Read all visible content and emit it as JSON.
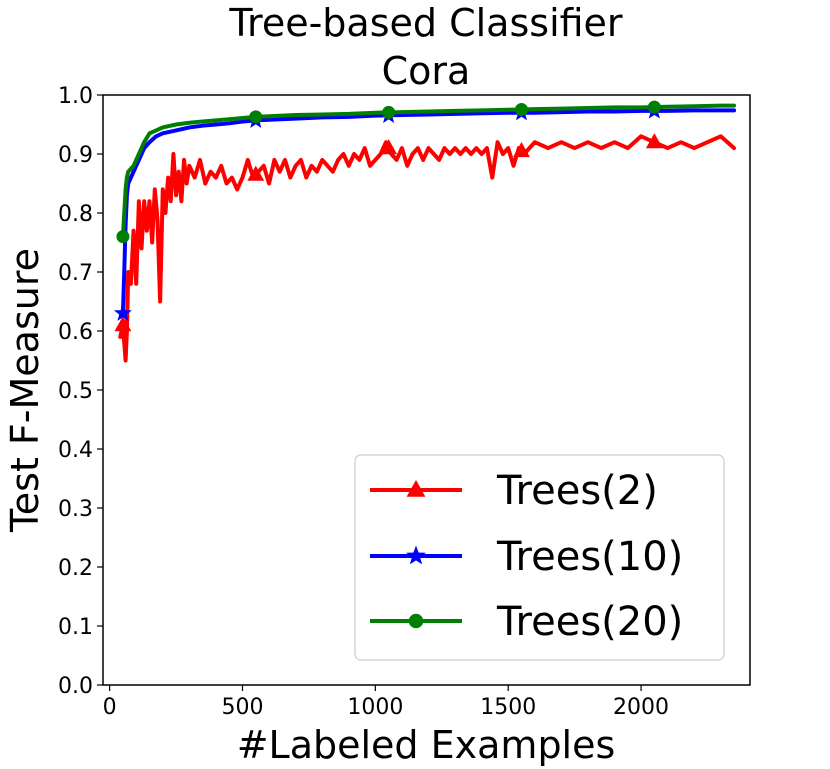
{
  "chart_data": {
    "type": "line",
    "title": "Tree-based Classifier",
    "subtitle": "Cora",
    "xlabel": "#Labeled Examples",
    "ylabel": "Test F-Measure",
    "xlim": [
      -25,
      2410
    ],
    "ylim": [
      0.0,
      1.0
    ],
    "xticks": [
      0,
      500,
      1000,
      1500,
      2000
    ],
    "yticks": [
      0.0,
      0.1,
      0.2,
      0.3,
      0.4,
      0.5,
      0.6,
      0.7,
      0.8,
      0.9,
      1.0
    ],
    "xtick_labels": [
      "0",
      "500",
      "1000",
      "1500",
      "2000"
    ],
    "ytick_labels": [
      "0.0",
      "0.1",
      "0.2",
      "0.3",
      "0.4",
      "0.5",
      "0.6",
      "0.7",
      "0.8",
      "0.9",
      "1.0"
    ],
    "grid": false,
    "legend_position": "lower-right",
    "series": [
      {
        "name": "Trees(2)",
        "color": "#ff0000",
        "marker": "triangle",
        "marker_x": [
          50,
          550,
          1050,
          1550,
          2050
        ],
        "x": [
          40,
          50,
          60,
          65,
          70,
          80,
          90,
          100,
          110,
          120,
          130,
          140,
          150,
          160,
          170,
          180,
          190,
          200,
          210,
          220,
          230,
          240,
          250,
          260,
          270,
          280,
          290,
          300,
          320,
          340,
          360,
          380,
          400,
          420,
          440,
          460,
          480,
          500,
          520,
          540,
          560,
          580,
          600,
          620,
          640,
          660,
          680,
          700,
          720,
          740,
          760,
          780,
          800,
          820,
          840,
          860,
          880,
          900,
          920,
          940,
          960,
          980,
          1000,
          1020,
          1040,
          1060,
          1080,
          1100,
          1120,
          1140,
          1160,
          1180,
          1200,
          1220,
          1240,
          1260,
          1280,
          1300,
          1320,
          1340,
          1360,
          1380,
          1400,
          1420,
          1440,
          1460,
          1480,
          1500,
          1520,
          1540,
          1560,
          1580,
          1600,
          1650,
          1700,
          1750,
          1800,
          1850,
          1900,
          1950,
          2000,
          2050,
          2100,
          2150,
          2200,
          2250,
          2300,
          2350
        ],
        "y": [
          0.59,
          0.61,
          0.55,
          0.6,
          0.7,
          0.68,
          0.77,
          0.68,
          0.82,
          0.74,
          0.82,
          0.77,
          0.82,
          0.75,
          0.84,
          0.79,
          0.65,
          0.84,
          0.8,
          0.86,
          0.82,
          0.9,
          0.83,
          0.87,
          0.82,
          0.89,
          0.85,
          0.88,
          0.86,
          0.89,
          0.85,
          0.87,
          0.86,
          0.88,
          0.85,
          0.86,
          0.84,
          0.86,
          0.89,
          0.86,
          0.87,
          0.88,
          0.85,
          0.89,
          0.87,
          0.89,
          0.86,
          0.88,
          0.89,
          0.86,
          0.88,
          0.87,
          0.89,
          0.88,
          0.87,
          0.89,
          0.9,
          0.88,
          0.9,
          0.89,
          0.91,
          0.88,
          0.89,
          0.9,
          0.92,
          0.9,
          0.89,
          0.91,
          0.88,
          0.9,
          0.91,
          0.89,
          0.91,
          0.9,
          0.89,
          0.91,
          0.9,
          0.91,
          0.9,
          0.91,
          0.9,
          0.91,
          0.9,
          0.91,
          0.86,
          0.92,
          0.9,
          0.91,
          0.88,
          0.91,
          0.9,
          0.91,
          0.92,
          0.91,
          0.92,
          0.91,
          0.92,
          0.91,
          0.92,
          0.91,
          0.93,
          0.92,
          0.91,
          0.92,
          0.91,
          0.92,
          0.93,
          0.91
        ]
      },
      {
        "name": "Trees(10)",
        "color": "#0000ff",
        "marker": "star",
        "marker_x": [
          50,
          550,
          1050,
          1550,
          2050
        ],
        "x": [
          50,
          55,
          60,
          65,
          70,
          80,
          90,
          100,
          110,
          120,
          130,
          150,
          175,
          200,
          250,
          300,
          350,
          400,
          450,
          500,
          550,
          600,
          700,
          800,
          900,
          1000,
          1100,
          1200,
          1300,
          1400,
          1500,
          1600,
          1700,
          1800,
          1900,
          2000,
          2100,
          2200,
          2300,
          2350
        ],
        "y": [
          0.63,
          0.7,
          0.78,
          0.83,
          0.85,
          0.86,
          0.87,
          0.88,
          0.89,
          0.9,
          0.91,
          0.92,
          0.93,
          0.935,
          0.94,
          0.945,
          0.948,
          0.95,
          0.952,
          0.955,
          0.957,
          0.958,
          0.96,
          0.962,
          0.963,
          0.965,
          0.966,
          0.967,
          0.968,
          0.969,
          0.97,
          0.97,
          0.971,
          0.972,
          0.972,
          0.973,
          0.973,
          0.974,
          0.974,
          0.974
        ]
      },
      {
        "name": "Trees(20)",
        "color": "#008000",
        "marker": "circle",
        "marker_x": [
          50,
          550,
          1050,
          1550,
          2050
        ],
        "x": [
          50,
          55,
          60,
          65,
          70,
          80,
          90,
          100,
          110,
          120,
          130,
          150,
          175,
          200,
          250,
          300,
          350,
          400,
          450,
          500,
          550,
          600,
          700,
          800,
          900,
          1000,
          1100,
          1200,
          1300,
          1400,
          1500,
          1600,
          1700,
          1800,
          1900,
          2000,
          2100,
          2200,
          2300,
          2350
        ],
        "y": [
          0.76,
          0.8,
          0.84,
          0.86,
          0.87,
          0.875,
          0.88,
          0.89,
          0.9,
          0.91,
          0.92,
          0.935,
          0.94,
          0.945,
          0.95,
          0.953,
          0.955,
          0.957,
          0.959,
          0.961,
          0.963,
          0.964,
          0.966,
          0.967,
          0.968,
          0.97,
          0.971,
          0.972,
          0.973,
          0.974,
          0.975,
          0.976,
          0.977,
          0.978,
          0.979,
          0.979,
          0.98,
          0.981,
          0.982,
          0.982
        ]
      }
    ]
  }
}
